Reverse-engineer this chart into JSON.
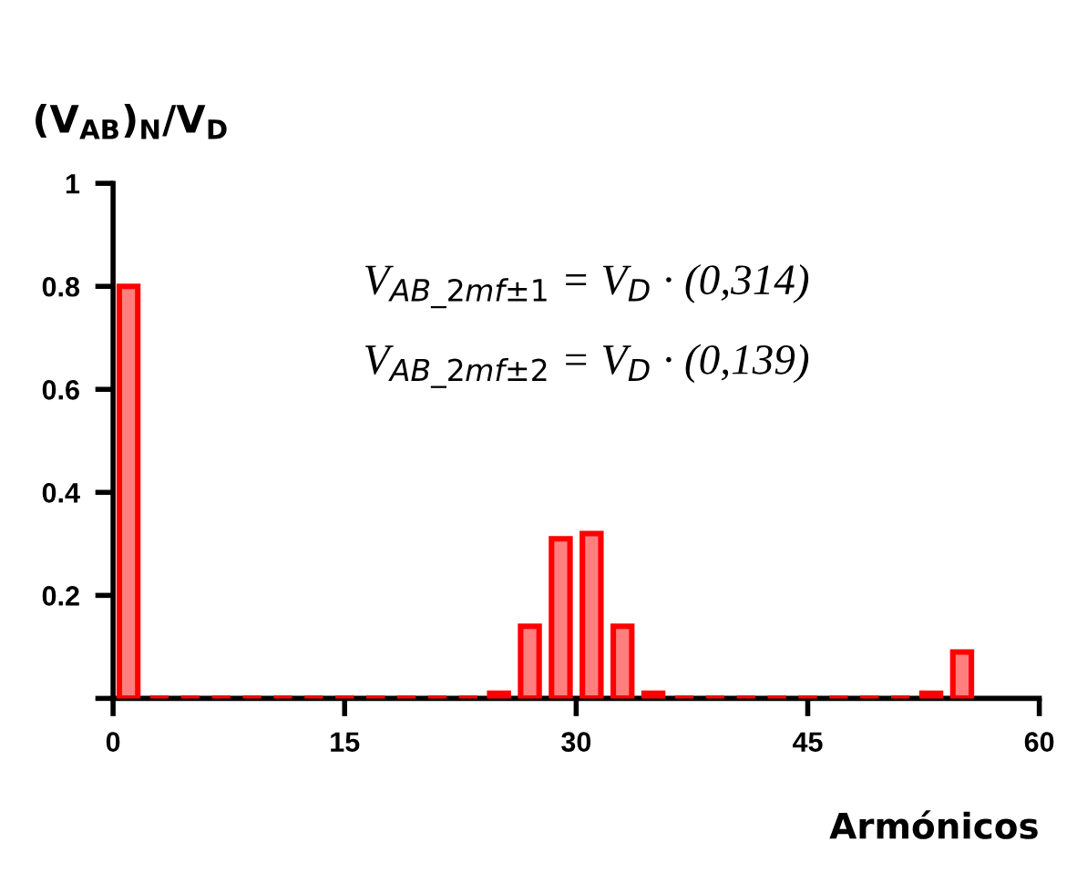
{
  "chart_data": {
    "type": "bar",
    "xlabel": "Armónicos",
    "ylabel": "(V$_{AB}$)$_{N}$/V$_{D}$",
    "x": [
      1,
      3,
      5,
      7,
      9,
      11,
      13,
      15,
      17,
      19,
      21,
      23,
      25,
      27,
      29,
      31,
      33,
      35,
      37,
      39,
      41,
      43,
      45,
      47,
      49,
      51,
      53,
      55
    ],
    "series": [
      {
        "color": "#ff0000",
        "values": [
          0.8,
          0,
          0,
          0,
          0,
          0,
          0,
          0,
          0,
          0,
          0,
          0,
          0.01,
          0.14,
          0.31,
          0.32,
          0.14,
          0.01,
          0,
          0,
          0,
          0,
          0,
          0,
          0,
          0,
          0.01,
          0.09
        ]
      }
    ],
    "xlim": [
      0,
      60
    ],
    "xticks": [
      0,
      15,
      30,
      45,
      60
    ],
    "ylim": [
      0,
      1
    ],
    "yticks": [
      {
        "value": 0,
        "label": null
      },
      0.2,
      0.4,
      0.6,
      0.8,
      1
    ],
    "annotations": [
      "V$_{AB_2mf±1}$ = V$_{D}$ · (0,314)",
      "V$_{AB_2mf±2}$ = V$_{D}$ · (0,139)"
    ],
    "grid": false,
    "legend": false
  }
}
